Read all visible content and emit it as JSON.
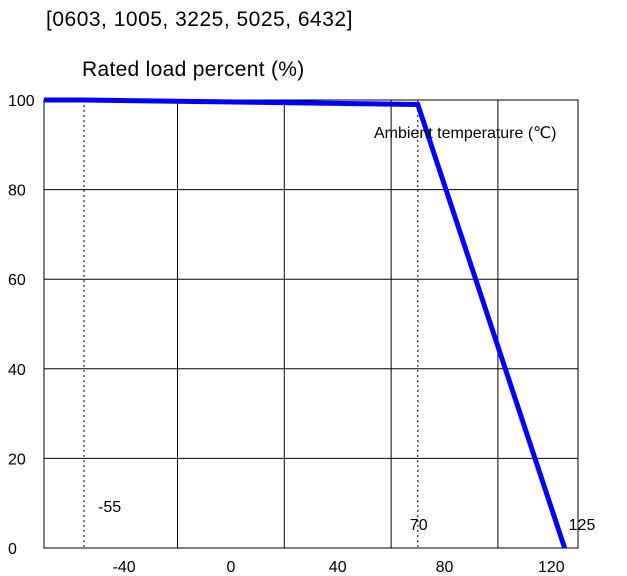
{
  "chart_data": {
    "type": "line",
    "subtitle": "[0603,  1005,  3225,  5025,  6432]",
    "title": "Rated load percent (%)",
    "xlabel": "Ambient temperature (℃)",
    "ylabel": "",
    "xlim": [
      -70,
      130
    ],
    "ylim": [
      0,
      100
    ],
    "xticks": [
      -40,
      0,
      40,
      80,
      120
    ],
    "yticks": [
      0,
      20,
      40,
      60,
      80,
      100
    ],
    "grid": true,
    "series": [
      {
        "color": "#0000ff",
        "x": [
          -70,
          -55,
          70,
          125
        ],
        "y": [
          100,
          100,
          99,
          0
        ]
      }
    ],
    "reference_lines": [
      {
        "x": -55,
        "label": "-55",
        "style": "dashed"
      },
      {
        "x": 70,
        "label": "70",
        "style": "dashed"
      }
    ],
    "annotations": [
      {
        "x": 125,
        "y": 0,
        "text": "125"
      }
    ]
  }
}
